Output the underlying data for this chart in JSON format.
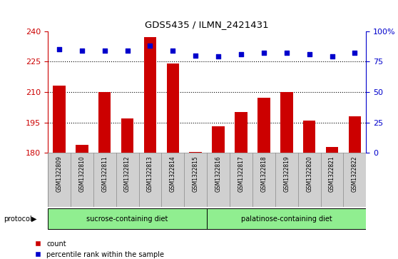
{
  "title": "GDS5435 / ILMN_2421431",
  "samples": [
    "GSM1322809",
    "GSM1322810",
    "GSM1322811",
    "GSM1322812",
    "GSM1322813",
    "GSM1322814",
    "GSM1322815",
    "GSM1322816",
    "GSM1322817",
    "GSM1322818",
    "GSM1322819",
    "GSM1322820",
    "GSM1322821",
    "GSM1322822"
  ],
  "counts": [
    213,
    184,
    210,
    197,
    237,
    224,
    180.5,
    193,
    200,
    207,
    210,
    196,
    183,
    198
  ],
  "percentiles": [
    85,
    84,
    84,
    84,
    88,
    84,
    80,
    79,
    81,
    82,
    82,
    81,
    79,
    82
  ],
  "ylim_left": [
    180,
    240
  ],
  "ylim_right": [
    0,
    100
  ],
  "yticks_left": [
    180,
    195,
    210,
    225,
    240
  ],
  "yticks_right": [
    0,
    25,
    50,
    75,
    100
  ],
  "bar_color": "#cc0000",
  "dot_color": "#0000cc",
  "n_sucrose": 7,
  "n_palatinose": 7,
  "sucrose_label": "sucrose-containing diet",
  "palatinose_label": "palatinose-containing diet",
  "protocol_label": "protocol",
  "legend_count": "count",
  "legend_percentile": "percentile rank within the sample",
  "sucrose_color": "#90ee90",
  "palatinose_color": "#90ee90",
  "sample_bg_color": "#d0d0d0",
  "plot_bg": "#ffffff",
  "left_axis_color": "#cc0000",
  "right_axis_color": "#0000cc",
  "grid_yticks": [
    195,
    210,
    225
  ]
}
